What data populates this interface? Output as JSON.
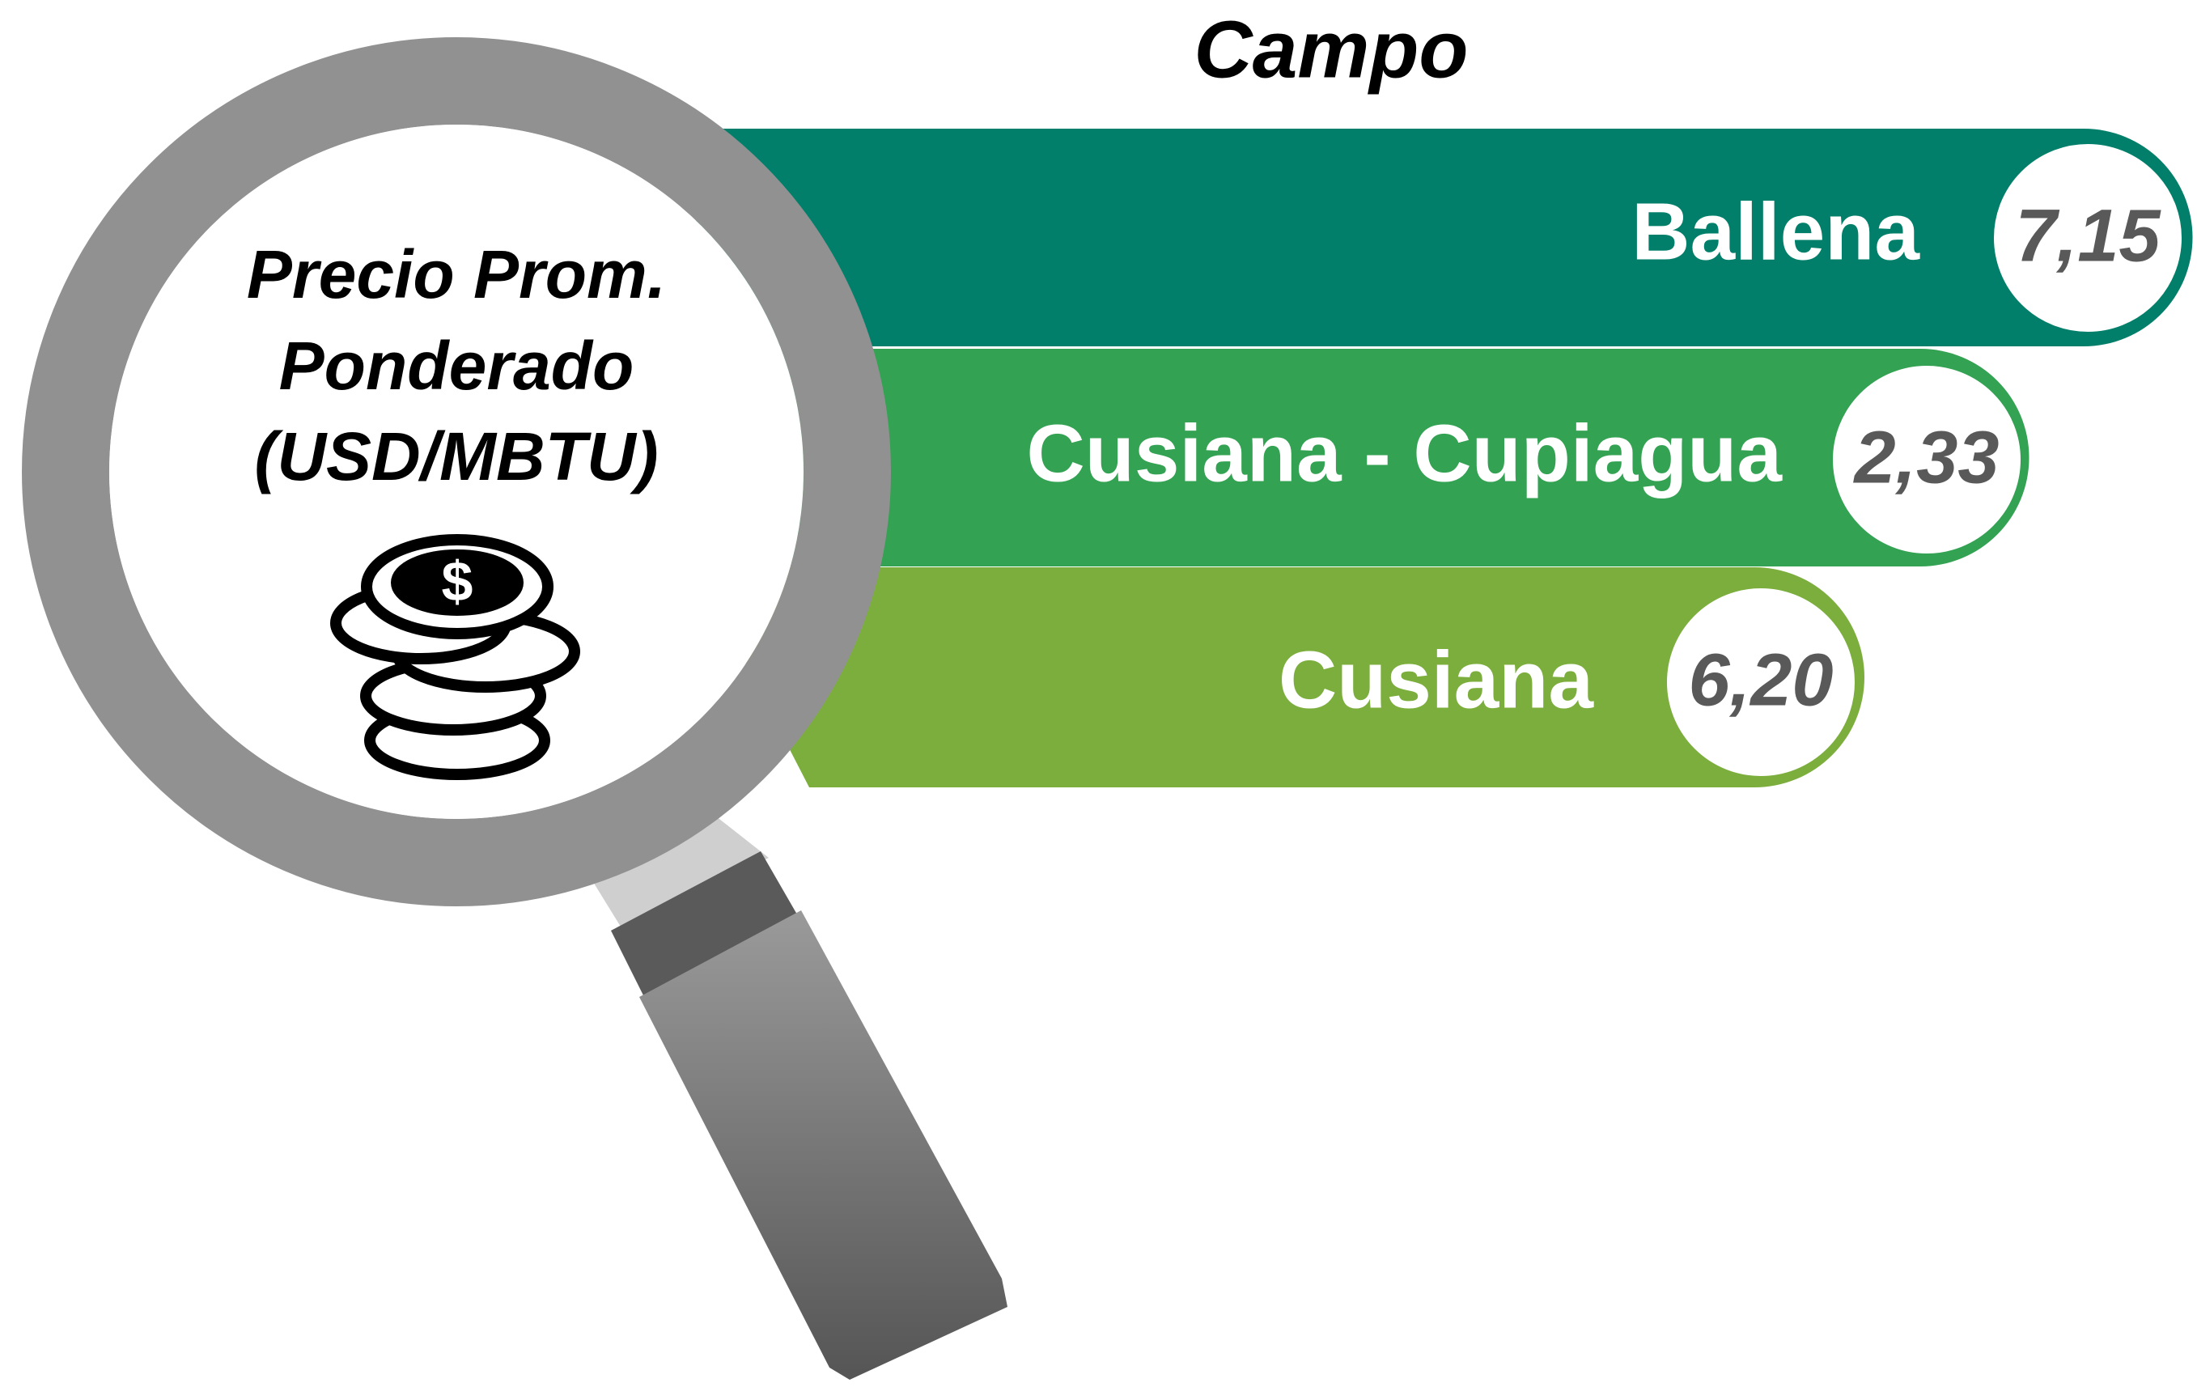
{
  "title": "Campo",
  "lens_label": [
    "Precio Prom.",
    "Ponderado",
    "(USD/MBTU)"
  ],
  "items": [
    {
      "name": "Ballena",
      "value": "7,15"
    },
    {
      "name": "Cusiana - Cupiagua",
      "value": "2,33"
    },
    {
      "name": "Cusiana",
      "value": "6,20"
    }
  ]
}
